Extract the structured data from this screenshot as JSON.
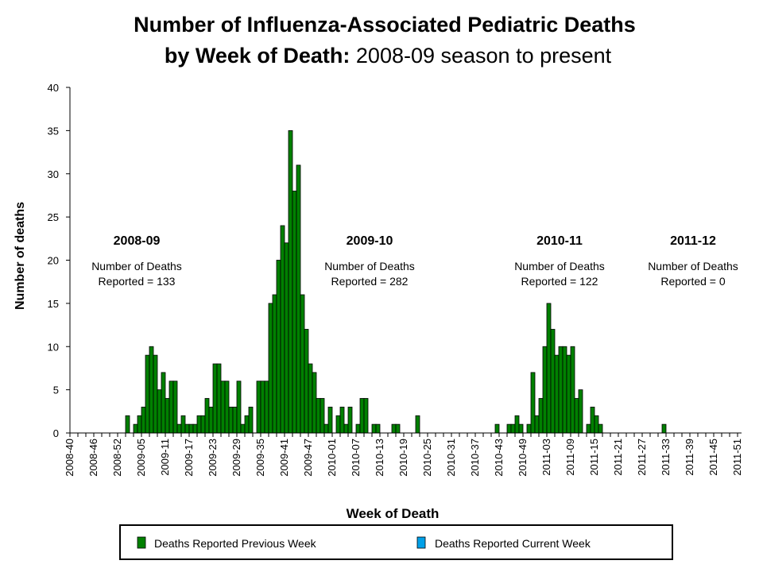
{
  "chart_data": {
    "type": "bar",
    "title_line1": "Number of Influenza-Associated Pediatric Deaths",
    "title_line2_bold": "by Week of Death:",
    "title_line2_rest": " 2008-09 season to present",
    "xlabel": "Week of Death",
    "ylabel": "Number of deaths",
    "ylim": [
      0,
      40
    ],
    "y_ticks": [
      "0",
      "5",
      "10",
      "15",
      "20",
      "25",
      "30",
      "35",
      "40"
    ],
    "x_first": "2008-40",
    "x_last": "2011-51",
    "x_tick_labels": [
      "2008-40",
      "2008-46",
      "2008-52",
      "2009-05",
      "2009-11",
      "2009-17",
      "2009-23",
      "2009-29",
      "2009-35",
      "2009-41",
      "2009-47",
      "2010-01",
      "2010-07",
      "2010-13",
      "2010-19",
      "2010-25",
      "2010-31",
      "2010-37",
      "2010-43",
      "2010-49",
      "2011-03",
      "2011-09",
      "2011-15",
      "2011-21",
      "2011-27",
      "2011-33",
      "2011-39",
      "2011-45",
      "2011-51"
    ],
    "grid": false,
    "legend_position": "bottom",
    "series": [
      {
        "name": "Deaths Reported Previous Week",
        "color": "#008000",
        "values": [
          0,
          0,
          0,
          0,
          0,
          0,
          0,
          0,
          0,
          0,
          0,
          0,
          0,
          0,
          2,
          0,
          1,
          2,
          3,
          9,
          10,
          9,
          5,
          7,
          4,
          6,
          6,
          1,
          2,
          1,
          1,
          1,
          2,
          2,
          4,
          3,
          8,
          8,
          6,
          6,
          3,
          3,
          6,
          1,
          2,
          3,
          0,
          6,
          6,
          6,
          15,
          16,
          20,
          24,
          22,
          35,
          28,
          31,
          16,
          12,
          8,
          7,
          4,
          4,
          1,
          3,
          0,
          2,
          3,
          1,
          3,
          0,
          1,
          4,
          4,
          0,
          1,
          1,
          0,
          0,
          0,
          1,
          1,
          0,
          0,
          0,
          0,
          2,
          0,
          0,
          0,
          0,
          0,
          0,
          0,
          0,
          0,
          0,
          0,
          0,
          0,
          0,
          0,
          0,
          0,
          0,
          0,
          1,
          0,
          0,
          1,
          1,
          2,
          1,
          0,
          1,
          7,
          2,
          4,
          10,
          15,
          12,
          9,
          10,
          10,
          9,
          10,
          4,
          5,
          0,
          1,
          3,
          2,
          1,
          0,
          0,
          0,
          0,
          0,
          0,
          0,
          0,
          0,
          0,
          0,
          0,
          0,
          0,
          0,
          1,
          0,
          0,
          0,
          0,
          0,
          0,
          0,
          0,
          0,
          0,
          0,
          0,
          0,
          0,
          0,
          0,
          0,
          0,
          0
        ]
      },
      {
        "name": "Deaths Reported Current Week",
        "color": "#00a0e8",
        "values": []
      }
    ],
    "annotations": [
      {
        "season": "2008-09",
        "line1": "Number of Deaths",
        "line2": "Reported = 133"
      },
      {
        "season": "2009-10",
        "line1": "Number of Deaths",
        "line2": "Reported = 282"
      },
      {
        "season": "2010-11",
        "line1": "Number of Deaths",
        "line2": "Reported = 122"
      },
      {
        "season": "2011-12",
        "line1": "Number of Deaths",
        "line2": "Reported = 0"
      }
    ]
  }
}
